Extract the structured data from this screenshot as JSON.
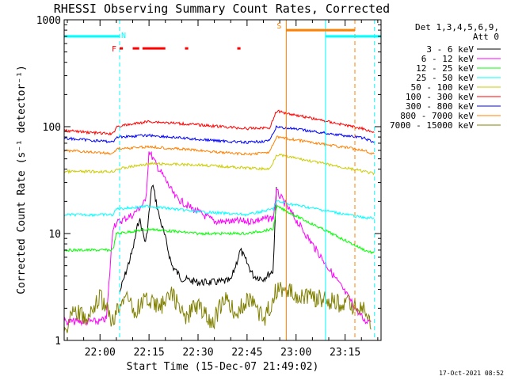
{
  "chart_data": {
    "type": "line",
    "title": "RHESSI Observing Summary Count Rates, Corrected",
    "xlabel": "Start Time (15-Dec-07 21:49:02)",
    "ylabel": "Corrected Count Rate (s⁻¹ detector⁻¹)",
    "xlim": [
      "21:49:02",
      "23:26:00"
    ],
    "x_ticks": [
      "22:00",
      "22:15",
      "22:30",
      "22:45",
      "23:00",
      "23:15"
    ],
    "y_scale": "log",
    "ylim": [
      1,
      1000
    ],
    "y_ticks": [
      "1",
      "10",
      "100",
      "1000"
    ],
    "grid": false,
    "legend_position": "top-right",
    "legend_header": [
      "Det 1,3,4,5,6,9,",
      "Att 0"
    ],
    "timestamp": "17-Oct-2021 08:52",
    "series": [
      {
        "name": "3 - 6 keV",
        "color": "#000000",
        "points": [
          [
            "22:06",
            2.8
          ],
          [
            "22:10",
            7
          ],
          [
            "22:12",
            14
          ],
          [
            "22:14",
            8
          ],
          [
            "22:16",
            30
          ],
          [
            "22:18",
            15
          ],
          [
            "22:20",
            9
          ],
          [
            "22:22",
            5
          ],
          [
            "22:25",
            3.8
          ],
          [
            "22:30",
            3.5
          ],
          [
            "22:35",
            3.5
          ],
          [
            "22:40",
            3.6
          ],
          [
            "22:43",
            7
          ],
          [
            "22:47",
            4
          ],
          [
            "22:50",
            3.8
          ],
          [
            "22:53",
            4.5
          ],
          [
            "22:54",
            30
          ]
        ]
      },
      {
        "name": "6 - 12 keV",
        "color": "#ff00ff",
        "points": [
          [
            "21:49",
            1.5
          ],
          [
            "22:00",
            1.5
          ],
          [
            "22:02",
            1.6
          ],
          [
            "22:04",
            12
          ],
          [
            "22:10",
            15
          ],
          [
            "22:14",
            20
          ],
          [
            "22:15",
            60
          ],
          [
            "22:17",
            45
          ],
          [
            "22:20",
            32
          ],
          [
            "22:23",
            22
          ],
          [
            "22:27",
            18
          ],
          [
            "22:35",
            13
          ],
          [
            "22:45",
            13
          ],
          [
            "22:53",
            14
          ],
          [
            "22:54",
            25
          ],
          [
            "23:21",
            1.5
          ],
          [
            "23:23",
            1.6
          ]
        ]
      },
      {
        "name": "12 - 25 keV",
        "color": "#00ff00",
        "points": [
          [
            "21:49",
            7
          ],
          [
            "22:04",
            7
          ],
          [
            "22:05",
            10
          ],
          [
            "22:15",
            11
          ],
          [
            "22:30",
            10
          ],
          [
            "22:45",
            10
          ],
          [
            "22:53",
            11
          ],
          [
            "22:54",
            18
          ],
          [
            "23:21",
            7
          ],
          [
            "23:24",
            6.5
          ]
        ]
      },
      {
        "name": "25 - 50 keV",
        "color": "#00ffff",
        "points": [
          [
            "21:49",
            15
          ],
          [
            "22:04",
            15
          ],
          [
            "22:05",
            17
          ],
          [
            "22:15",
            18
          ],
          [
            "22:30",
            16
          ],
          [
            "22:45",
            15
          ],
          [
            "22:53",
            17
          ],
          [
            "22:54",
            20
          ],
          [
            "23:21",
            14
          ],
          [
            "23:24",
            14
          ]
        ]
      },
      {
        "name": "50 - 100 keV",
        "color": "#cccc00",
        "points": [
          [
            "21:49",
            38
          ],
          [
            "22:04",
            38
          ],
          [
            "22:05",
            40
          ],
          [
            "22:15",
            45
          ],
          [
            "22:30",
            44
          ],
          [
            "22:45",
            41
          ],
          [
            "22:52",
            40
          ],
          [
            "22:54",
            55
          ],
          [
            "23:21",
            38
          ],
          [
            "23:24",
            36
          ]
        ]
      },
      {
        "name": "100 - 300 keV",
        "color": "#ff0000",
        "points": [
          [
            "21:49",
            92
          ],
          [
            "22:04",
            85
          ],
          [
            "22:05",
            100
          ],
          [
            "22:15",
            112
          ],
          [
            "22:30",
            104
          ],
          [
            "22:45",
            96
          ],
          [
            "22:52",
            98
          ],
          [
            "22:54",
            140
          ],
          [
            "23:21",
            95
          ],
          [
            "23:24",
            88
          ]
        ]
      },
      {
        "name": "300 - 800 keV",
        "color": "#0000ff",
        "points": [
          [
            "21:49",
            78
          ],
          [
            "22:04",
            72
          ],
          [
            "22:05",
            80
          ],
          [
            "22:15",
            83
          ],
          [
            "22:30",
            76
          ],
          [
            "22:45",
            71
          ],
          [
            "22:52",
            74
          ],
          [
            "22:54",
            100
          ],
          [
            "23:21",
            78
          ],
          [
            "23:24",
            70
          ]
        ]
      },
      {
        "name": "800 - 7000 keV",
        "color": "#ff8000",
        "points": [
          [
            "21:49",
            60
          ],
          [
            "22:04",
            56
          ],
          [
            "22:05",
            62
          ],
          [
            "22:15",
            65
          ],
          [
            "22:30",
            60
          ],
          [
            "22:45",
            55
          ],
          [
            "22:52",
            58
          ],
          [
            "22:54",
            80
          ],
          [
            "23:21",
            60
          ],
          [
            "23:24",
            55
          ]
        ]
      },
      {
        "name": "7000 - 15000 keV",
        "color": "#808000",
        "points": [
          [
            "21:49",
            1.2
          ],
          [
            "21:52",
            2.0
          ],
          [
            "21:56",
            1.5
          ],
          [
            "22:00",
            2.5
          ],
          [
            "22:04",
            1.5
          ],
          [
            "22:08",
            3
          ],
          [
            "22:10",
            1.8
          ],
          [
            "22:14",
            2.5
          ],
          [
            "22:18",
            2.0
          ],
          [
            "22:22",
            2.8
          ],
          [
            "22:26",
            1.6
          ],
          [
            "22:30",
            2.2
          ],
          [
            "22:34",
            1.4
          ],
          [
            "22:38",
            2.4
          ],
          [
            "22:42",
            1.8
          ],
          [
            "22:46",
            2.6
          ],
          [
            "22:50",
            1.5
          ],
          [
            "22:54",
            3
          ],
          [
            "23:21",
            2.0
          ],
          [
            "23:23",
            1.3
          ]
        ]
      }
    ],
    "intervals": [
      {
        "flag": "N",
        "color": "#00ffff",
        "start": "21:49",
        "end": "22:06",
        "y": 700
      },
      {
        "flag": "N",
        "color": "#00ffff",
        "start": "23:09",
        "end": "23:26",
        "y": 700
      },
      {
        "flag": "F",
        "color": "#ff0000",
        "segments": [
          [
            "22:06",
            "22:07"
          ],
          [
            "22:10",
            "22:12"
          ],
          [
            "22:13",
            "22:20"
          ],
          [
            "22:26",
            "22:27"
          ],
          [
            "22:42",
            "22:43"
          ]
        ],
        "y": 540
      },
      {
        "flag": "S",
        "color": "#ff8000",
        "start": "22:57",
        "end": "23:18",
        "y": 800
      }
    ],
    "markers": [
      {
        "time": "22:06",
        "color": "#00ffff",
        "style": "dashed"
      },
      {
        "time": "22:57",
        "color": "#ff8000",
        "style": "solid"
      },
      {
        "time": "23:09",
        "color": "#00ffff",
        "style": "solid"
      },
      {
        "time": "23:18",
        "color": "#ff8000",
        "style": "dashed"
      },
      {
        "time": "23:24",
        "color": "#00ffff",
        "style": "dashed"
      }
    ]
  }
}
